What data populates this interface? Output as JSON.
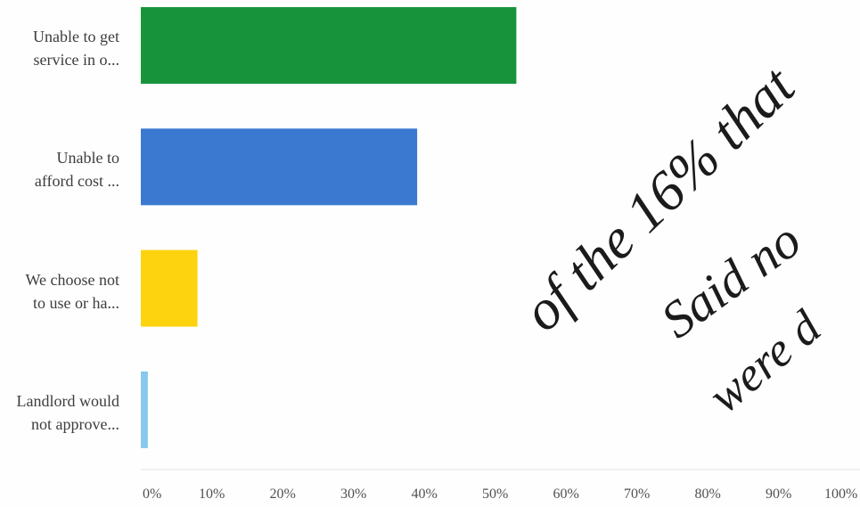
{
  "chart_data": {
    "type": "bar",
    "orientation": "horizontal",
    "categories": [
      "Unable to get\nservice in o...",
      "Unable to\nafford cost ...",
      "We choose not\nto use or ha...",
      "Landlord would\nnot approve..."
    ],
    "values": [
      53,
      39,
      8,
      1
    ],
    "xlim": [
      0,
      100
    ],
    "x_ticks": [
      "0%",
      "10%",
      "20%",
      "30%",
      "40%",
      "50%",
      "60%",
      "70%",
      "80%",
      "90%",
      "100%"
    ],
    "colors": [
      "#17943b",
      "#3b79d0",
      "#fdd30f",
      "#86c8ee"
    ],
    "grid": false,
    "legend": "none"
  },
  "annotation": {
    "lines": [
      "of the 16% that",
      "Said no",
      "were d"
    ]
  }
}
